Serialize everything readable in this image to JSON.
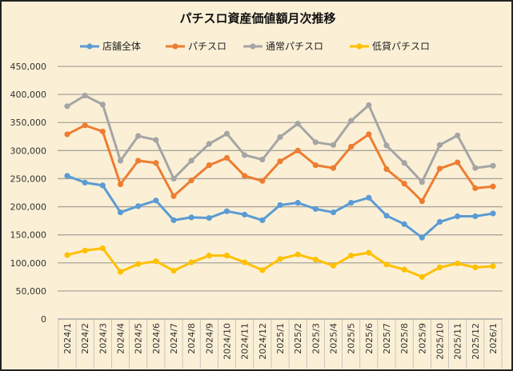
{
  "chart_data": {
    "type": "line",
    "title": "パチスロ資産価値額月次推移",
    "xlabel": "",
    "ylabel": "",
    "categories": [
      "2024/1",
      "2024/2",
      "2024/3",
      "2024/4",
      "2024/5",
      "2024/6",
      "2024/7",
      "2024/8",
      "2024/9",
      "2024/10",
      "2024/11",
      "2024/12",
      "2025/1",
      "2025/2",
      "2025/3",
      "2025/4",
      "2025/5",
      "2025/6",
      "2025/7",
      "2025/8",
      "2025/9",
      "2025/10",
      "2025/11",
      "2025/12",
      "2026/1"
    ],
    "ylim": [
      0,
      450000
    ],
    "yticks": [
      "0",
      "50,000",
      "100,000",
      "150,000",
      "200,000",
      "250,000",
      "300,000",
      "350,000",
      "400,000",
      "450,000"
    ],
    "grid": true,
    "legend": "top",
    "series": [
      {
        "name": "店舗全体",
        "color": "#5b9bd5",
        "values": [
          255000,
          243000,
          238000,
          190000,
          201000,
          211000,
          176000,
          181000,
          180000,
          192000,
          186000,
          176000,
          203000,
          207000,
          196000,
          190000,
          207000,
          216000,
          184000,
          169000,
          145000,
          173000,
          183000,
          183000,
          188000
        ]
      },
      {
        "name": "パチスロ",
        "color": "#ed7d31",
        "values": [
          329000,
          345000,
          334000,
          240000,
          282000,
          278000,
          219000,
          247000,
          274000,
          287000,
          255000,
          246000,
          281000,
          300000,
          274000,
          269000,
          307000,
          329000,
          267000,
          241000,
          210000,
          268000,
          279000,
          233000,
          236000
        ]
      },
      {
        "name": "通常パチスロ",
        "color": "#a5a5a5",
        "values": [
          379000,
          398000,
          382000,
          282000,
          326000,
          319000,
          250000,
          282000,
          312000,
          330000,
          292000,
          284000,
          324000,
          348000,
          315000,
          310000,
          353000,
          381000,
          309000,
          278000,
          244000,
          310000,
          327000,
          269000,
          273000
        ]
      },
      {
        "name": "低貸パチスロ",
        "color": "#ffc000",
        "values": [
          114000,
          122000,
          126000,
          84000,
          98000,
          103000,
          86000,
          101000,
          113000,
          113000,
          101000,
          87000,
          107000,
          115000,
          106000,
          95000,
          113000,
          118000,
          97000,
          88000,
          75000,
          92000,
          99000,
          92000,
          94000
        ]
      }
    ]
  }
}
